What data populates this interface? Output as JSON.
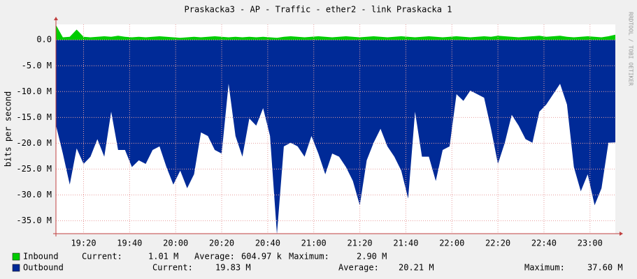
{
  "chart_data": {
    "type": "area",
    "title": "Praskacka3 - AP - Traffic - ether2 - link Praskacka 1",
    "y_label": "bits per second",
    "side_text": "RRDTOOL / TOBI OETIKER",
    "x": [
      "19:08",
      "19:11",
      "19:14",
      "19:17",
      "19:20",
      "19:23",
      "19:26",
      "19:29",
      "19:32",
      "19:35",
      "19:38",
      "19:41",
      "19:44",
      "19:47",
      "19:50",
      "19:53",
      "19:56",
      "19:59",
      "20:02",
      "20:05",
      "20:08",
      "20:11",
      "20:14",
      "20:17",
      "20:20",
      "20:23",
      "20:26",
      "20:29",
      "20:32",
      "20:35",
      "20:38",
      "20:41",
      "20:44",
      "20:47",
      "20:50",
      "20:53",
      "20:56",
      "20:59",
      "21:02",
      "21:05",
      "21:08",
      "21:11",
      "21:14",
      "21:17",
      "21:20",
      "21:23",
      "21:26",
      "21:29",
      "21:32",
      "21:35",
      "21:38",
      "21:41",
      "21:44",
      "21:47",
      "21:50",
      "21:53",
      "21:56",
      "21:59",
      "22:02",
      "22:05",
      "22:08",
      "22:11",
      "22:14",
      "22:17",
      "22:20",
      "22:23",
      "22:26",
      "22:29",
      "22:32",
      "22:35",
      "22:38",
      "22:41",
      "22:44",
      "22:47",
      "22:50",
      "22:53",
      "22:56",
      "22:59",
      "23:02",
      "23:05",
      "23:08",
      "23:11"
    ],
    "xlim": [
      "19:08",
      "23:11"
    ],
    "xticks": [
      "19:20",
      "19:40",
      "20:00",
      "20:20",
      "20:40",
      "21:00",
      "21:20",
      "21:40",
      "22:00",
      "22:20",
      "22:40",
      "23:00"
    ],
    "ylim": [
      -37.5,
      3
    ],
    "yticks": [
      {
        "value": 0,
        "label": "0.0"
      },
      {
        "value": -5,
        "label": "-5.0 M"
      },
      {
        "value": -10,
        "label": "-10.0 M"
      },
      {
        "value": -15,
        "label": "-15.0 M"
      },
      {
        "value": -20,
        "label": "-20.0 M"
      },
      {
        "value": -25,
        "label": "-25.0 M"
      },
      {
        "value": -30,
        "label": "-30.0 M"
      },
      {
        "value": -35,
        "label": "-35.0 M"
      }
    ],
    "grid": true,
    "stat_labels": [
      "Current:",
      "Average:",
      "Maximum:"
    ],
    "series": [
      {
        "name": "Inbound",
        "color": "#00cc00",
        "current": "1.01 M",
        "average": "604.97 k",
        "maximum": "2.90 M",
        "values": [
          2.9,
          0.5,
          0.6,
          2.0,
          0.6,
          0.5,
          0.6,
          0.7,
          0.6,
          0.8,
          0.6,
          0.5,
          0.6,
          0.5,
          0.6,
          0.7,
          0.6,
          0.5,
          0.4,
          0.5,
          0.6,
          0.5,
          0.6,
          0.7,
          0.6,
          0.5,
          0.6,
          0.5,
          0.6,
          0.5,
          0.6,
          0.5,
          0.4,
          0.6,
          0.7,
          0.6,
          0.5,
          0.6,
          0.7,
          0.6,
          0.5,
          0.6,
          0.7,
          0.6,
          0.5,
          0.6,
          0.7,
          0.6,
          0.5,
          0.6,
          0.7,
          0.6,
          0.5,
          0.6,
          0.7,
          0.6,
          0.5,
          0.6,
          0.7,
          0.6,
          0.5,
          0.6,
          0.7,
          0.6,
          0.8,
          0.7,
          0.6,
          0.5,
          0.6,
          0.7,
          0.8,
          0.6,
          0.7,
          0.8,
          0.6,
          0.5,
          0.6,
          0.7,
          0.6,
          0.5,
          0.7,
          1.01
        ]
      },
      {
        "name": "Outbound",
        "color": "#002a97",
        "current": "19.83 M",
        "average": "20.21 M",
        "maximum": "37.60 M",
        "values": [
          -16.5,
          -22,
          -28,
          -21,
          -24,
          -22.6,
          -19.2,
          -22.6,
          -13.9,
          -21.3,
          -21.3,
          -24.6,
          -23.3,
          -24,
          -21.3,
          -20.6,
          -24.6,
          -28,
          -25.3,
          -28.7,
          -26,
          -17.9,
          -18.6,
          -21.3,
          -22,
          -8.5,
          -18.6,
          -22.6,
          -15.2,
          -16.6,
          -13.2,
          -18.6,
          -37.6,
          -20.6,
          -19.9,
          -20.6,
          -22.6,
          -18.6,
          -22,
          -26,
          -22,
          -22.6,
          -24.6,
          -27.3,
          -32,
          -23.3,
          -19.9,
          -17.2,
          -20.6,
          -22.6,
          -25.3,
          -30.7,
          -13.9,
          -22.6,
          -22.6,
          -27.3,
          -21.3,
          -20.6,
          -10.5,
          -11.8,
          -9.8,
          -10.5,
          -11.2,
          -17.2,
          -24,
          -19.9,
          -14.5,
          -16.6,
          -19.2,
          -19.9,
          -13.9,
          -12.5,
          -10.5,
          -8.5,
          -12.5,
          -24.6,
          -29.3,
          -26,
          -32,
          -28.7,
          -19.9,
          -19.83
        ]
      }
    ]
  }
}
